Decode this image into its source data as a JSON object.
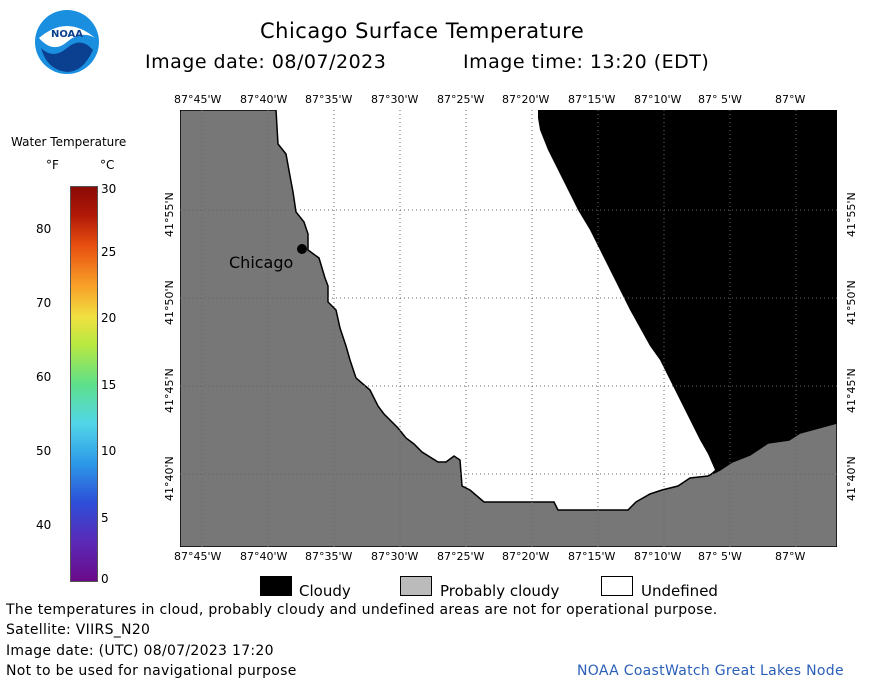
{
  "header": {
    "title": "Chicago Surface Temperature",
    "image_date": "Image date: 08/07/2023",
    "image_time": "Image time: 13:20 (EDT)"
  },
  "logo": {
    "text": "NOAA"
  },
  "colorbar": {
    "title": "Water Temperature",
    "unit_f": "°F",
    "unit_c": "°C",
    "f_ticks": [
      "80",
      "70",
      "60",
      "50",
      "40"
    ],
    "c_ticks": [
      "30",
      "25",
      "20",
      "15",
      "10",
      "5",
      "0"
    ]
  },
  "map": {
    "lon_labels": [
      "87°45'W",
      "87°40'W",
      "87°35'W",
      "87°30'W",
      "87°25'W",
      "87°20'W",
      "87°15'W",
      "87°10'W",
      "87° 5'W",
      "87°W"
    ],
    "lat_labels": [
      "41°55'N",
      "41°50'N",
      "41°45'N",
      "41°40'N"
    ],
    "city": "Chicago",
    "colors": {
      "land": "#777777",
      "cloudy": "#000000",
      "undefined": "#ffffff",
      "probably_cloudy": "#bbbbbb"
    }
  },
  "legend": {
    "cloudy": "Cloudy",
    "probably_cloudy": "Probably cloudy",
    "undefined": "Undefined"
  },
  "footer": {
    "disclaimer": "The temperatures in cloud, probably cloudy and undefined areas are not for operational purpose.",
    "satellite": "Satellite: VIIRS_N20",
    "utc_date": "Image date: (UTC) 08/07/2023  17:20",
    "nav_warning": "Not to be used for navigational purpose",
    "credit": "NOAA CoastWatch Great Lakes Node"
  }
}
